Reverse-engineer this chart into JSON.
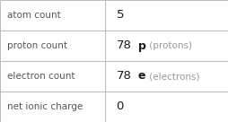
{
  "rows": [
    {
      "label": "atom count",
      "value": "5",
      "bold_suffix": "",
      "suffix": ""
    },
    {
      "label": "proton count",
      "value": "78",
      "bold_suffix": "p",
      "suffix": " (protons)"
    },
    {
      "label": "electron count",
      "value": "78",
      "bold_suffix": "e",
      "suffix": " (electrons)"
    },
    {
      "label": "net ionic charge",
      "value": "0",
      "bold_suffix": "",
      "suffix": ""
    }
  ],
  "col_split": 0.46,
  "bg_color": "#ffffff",
  "border_color": "#bbbbbb",
  "label_color": "#555555",
  "value_color": "#1a1a1a",
  "suffix_color": "#999999",
  "label_fontsize": 7.5,
  "value_fontsize": 9.5,
  "bold_suffix_fontsize": 9.0,
  "suffix_fontsize": 7.5
}
